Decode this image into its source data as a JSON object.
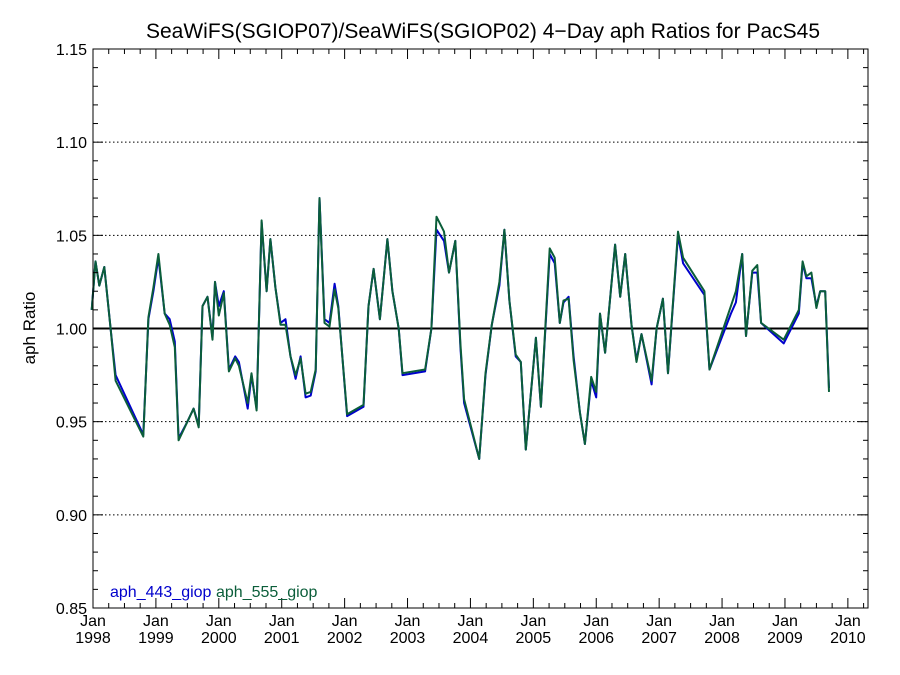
{
  "chart_data": {
    "type": "line",
    "title": "SeaWiFS(SGIOP07)/SeaWiFS(SGIOP02) 4−Day aph Ratios for PacS45",
    "xlabel": "",
    "ylabel": "aph Ratio",
    "xlim": [
      1998.0,
      2010.32
    ],
    "ylim": [
      0.85,
      1.15
    ],
    "yticks": [
      0.85,
      0.9,
      0.95,
      1.0,
      1.05,
      1.1,
      1.15
    ],
    "ytick_labels": [
      "0.85",
      "0.90",
      "0.95",
      "1.00",
      "1.05",
      "1.10",
      "1.15"
    ],
    "xticks": [
      {
        "month": "Jan",
        "year": "1998",
        "x": 1998
      },
      {
        "month": "Jan",
        "year": "1999",
        "x": 1999
      },
      {
        "month": "Jan",
        "year": "2000",
        "x": 2000
      },
      {
        "month": "Jan",
        "year": "2001",
        "x": 2001
      },
      {
        "month": "Jan",
        "year": "2002",
        "x": 2002
      },
      {
        "month": "Jan",
        "year": "2003",
        "x": 2003
      },
      {
        "month": "Jan",
        "year": "2004",
        "x": 2004
      },
      {
        "month": "Jan",
        "year": "2005",
        "x": 2005
      },
      {
        "month": "Jan",
        "year": "2006",
        "x": 2006
      },
      {
        "month": "Jan",
        "year": "2007",
        "x": 2007
      },
      {
        "month": "Jan",
        "year": "2008",
        "x": 2008
      },
      {
        "month": "Jan",
        "year": "2009",
        "x": 2009
      },
      {
        "month": "Jan",
        "year": "2010",
        "x": 2010
      }
    ],
    "grid": "horizontal-dotted",
    "reference_line": 1.0,
    "legend_position": "bottom-left",
    "series": [
      {
        "name": "aph_443_giop",
        "color": "#0000cc",
        "points": [
          [
            1997.98,
            1.01
          ],
          [
            1998.04,
            1.036
          ],
          [
            1998.1,
            1.023
          ],
          [
            1998.18,
            1.033
          ],
          [
            1998.28,
            1.0
          ],
          [
            1998.36,
            0.975
          ],
          [
            1998.8,
            0.943
          ],
          [
            1998.88,
            1.005
          ],
          [
            1998.96,
            1.02
          ],
          [
            1999.04,
            1.038
          ],
          [
            1999.14,
            1.008
          ],
          [
            1999.22,
            1.005
          ],
          [
            1999.3,
            0.993
          ],
          [
            1999.36,
            0.941
          ],
          [
            1999.5,
            0.95
          ],
          [
            1999.6,
            0.957
          ],
          [
            1999.68,
            0.948
          ],
          [
            1999.74,
            1.012
          ],
          [
            1999.82,
            1.017
          ],
          [
            1999.9,
            0.995
          ],
          [
            1999.94,
            1.025
          ],
          [
            2000.0,
            1.012
          ],
          [
            2000.08,
            1.02
          ],
          [
            2000.16,
            0.978
          ],
          [
            2000.26,
            0.985
          ],
          [
            2000.32,
            0.982
          ],
          [
            2000.46,
            0.957
          ],
          [
            2000.52,
            0.975
          ],
          [
            2000.6,
            0.957
          ],
          [
            2000.68,
            1.057
          ],
          [
            2000.76,
            1.02
          ],
          [
            2000.82,
            1.048
          ],
          [
            2000.9,
            1.022
          ],
          [
            2000.98,
            1.003
          ],
          [
            2001.06,
            1.005
          ],
          [
            2001.14,
            0.985
          ],
          [
            2001.22,
            0.973
          ],
          [
            2001.3,
            0.985
          ],
          [
            2001.38,
            0.963
          ],
          [
            2001.46,
            0.964
          ],
          [
            2001.54,
            0.977
          ],
          [
            2001.6,
            1.07
          ],
          [
            2001.68,
            1.005
          ],
          [
            2001.76,
            1.003
          ],
          [
            2001.84,
            1.024
          ],
          [
            2001.9,
            1.012
          ],
          [
            2002.04,
            0.953
          ],
          [
            2002.3,
            0.958
          ],
          [
            2002.38,
            1.012
          ],
          [
            2002.46,
            1.032
          ],
          [
            2002.56,
            1.005
          ],
          [
            2002.68,
            1.048
          ],
          [
            2002.76,
            1.02
          ],
          [
            2002.86,
            1.0
          ],
          [
            2002.92,
            0.975
          ],
          [
            2003.28,
            0.977
          ],
          [
            2003.38,
            1.0
          ],
          [
            2003.46,
            1.053
          ],
          [
            2003.58,
            1.047
          ],
          [
            2003.66,
            1.03
          ],
          [
            2003.76,
            1.047
          ],
          [
            2003.84,
            0.99
          ],
          [
            2003.9,
            0.96
          ],
          [
            2004.14,
            0.93
          ],
          [
            2004.24,
            0.975
          ],
          [
            2004.34,
            1.002
          ],
          [
            2004.46,
            1.023
          ],
          [
            2004.54,
            1.053
          ],
          [
            2004.62,
            1.015
          ],
          [
            2004.72,
            0.985
          ],
          [
            2004.8,
            0.982
          ],
          [
            2004.88,
            0.935
          ],
          [
            2005.04,
            0.995
          ],
          [
            2005.12,
            0.958
          ],
          [
            2005.26,
            1.04
          ],
          [
            2005.34,
            1.035
          ],
          [
            2005.42,
            1.003
          ],
          [
            2005.48,
            1.014
          ],
          [
            2005.56,
            1.017
          ],
          [
            2005.64,
            0.985
          ],
          [
            2005.74,
            0.955
          ],
          [
            2005.82,
            0.938
          ],
          [
            2005.92,
            0.972
          ],
          [
            2006.0,
            0.963
          ],
          [
            2006.06,
            1.008
          ],
          [
            2006.14,
            0.987
          ],
          [
            2006.3,
            1.045
          ],
          [
            2006.38,
            1.017
          ],
          [
            2006.46,
            1.04
          ],
          [
            2006.56,
            1.002
          ],
          [
            2006.64,
            0.983
          ],
          [
            2006.72,
            0.997
          ],
          [
            2006.88,
            0.97
          ],
          [
            2006.96,
            1.0
          ],
          [
            2007.06,
            1.016
          ],
          [
            2007.14,
            0.976
          ],
          [
            2007.3,
            1.05
          ],
          [
            2007.38,
            1.035
          ],
          [
            2007.72,
            1.018
          ],
          [
            2007.8,
            0.978
          ],
          [
            2008.14,
            1.008
          ],
          [
            2008.22,
            1.014
          ],
          [
            2008.32,
            1.04
          ],
          [
            2008.38,
            0.996
          ],
          [
            2008.48,
            1.03
          ],
          [
            2008.56,
            1.03
          ],
          [
            2008.62,
            1.003
          ],
          [
            2008.98,
            0.992
          ],
          [
            2009.22,
            1.008
          ],
          [
            2009.28,
            1.035
          ],
          [
            2009.34,
            1.027
          ],
          [
            2009.42,
            1.027
          ],
          [
            2009.5,
            1.012
          ],
          [
            2009.56,
            1.02
          ],
          [
            2009.64,
            1.02
          ],
          [
            2009.7,
            0.968
          ]
        ]
      },
      {
        "name": "aph_555_giop",
        "color": "#0b5e3a",
        "points": [
          [
            1997.98,
            1.01
          ],
          [
            1998.04,
            1.036
          ],
          [
            1998.1,
            1.023
          ],
          [
            1998.18,
            1.033
          ],
          [
            1998.28,
            1.0
          ],
          [
            1998.36,
            0.972
          ],
          [
            1998.8,
            0.942
          ],
          [
            1998.88,
            1.006
          ],
          [
            1998.96,
            1.022
          ],
          [
            1999.04,
            1.04
          ],
          [
            1999.14,
            1.008
          ],
          [
            1999.22,
            1.002
          ],
          [
            1999.3,
            0.99
          ],
          [
            1999.36,
            0.94
          ],
          [
            1999.5,
            0.95
          ],
          [
            1999.6,
            0.957
          ],
          [
            1999.68,
            0.947
          ],
          [
            1999.74,
            1.012
          ],
          [
            1999.82,
            1.017
          ],
          [
            1999.9,
            0.994
          ],
          [
            1999.94,
            1.025
          ],
          [
            2000.0,
            1.007
          ],
          [
            2000.08,
            1.019
          ],
          [
            2000.16,
            0.977
          ],
          [
            2000.26,
            0.984
          ],
          [
            2000.32,
            0.98
          ],
          [
            2000.46,
            0.96
          ],
          [
            2000.52,
            0.976
          ],
          [
            2000.6,
            0.956
          ],
          [
            2000.68,
            1.058
          ],
          [
            2000.76,
            1.02
          ],
          [
            2000.82,
            1.048
          ],
          [
            2000.9,
            1.022
          ],
          [
            2000.98,
            1.002
          ],
          [
            2001.06,
            1.002
          ],
          [
            2001.14,
            0.985
          ],
          [
            2001.22,
            0.975
          ],
          [
            2001.3,
            0.984
          ],
          [
            2001.38,
            0.965
          ],
          [
            2001.46,
            0.966
          ],
          [
            2001.54,
            0.978
          ],
          [
            2001.6,
            1.07
          ],
          [
            2001.68,
            1.003
          ],
          [
            2001.76,
            1.001
          ],
          [
            2001.84,
            1.021
          ],
          [
            2001.9,
            1.011
          ],
          [
            2002.04,
            0.954
          ],
          [
            2002.3,
            0.959
          ],
          [
            2002.38,
            1.012
          ],
          [
            2002.46,
            1.032
          ],
          [
            2002.56,
            1.005
          ],
          [
            2002.68,
            1.048
          ],
          [
            2002.76,
            1.02
          ],
          [
            2002.86,
            1.0
          ],
          [
            2002.92,
            0.976
          ],
          [
            2003.28,
            0.978
          ],
          [
            2003.38,
            1.0
          ],
          [
            2003.46,
            1.06
          ],
          [
            2003.58,
            1.052
          ],
          [
            2003.66,
            1.03
          ],
          [
            2003.76,
            1.047
          ],
          [
            2003.84,
            0.992
          ],
          [
            2003.9,
            0.962
          ],
          [
            2004.14,
            0.93
          ],
          [
            2004.24,
            0.976
          ],
          [
            2004.34,
            1.002
          ],
          [
            2004.46,
            1.025
          ],
          [
            2004.54,
            1.053
          ],
          [
            2004.62,
            1.015
          ],
          [
            2004.72,
            0.986
          ],
          [
            2004.8,
            0.982
          ],
          [
            2004.88,
            0.935
          ],
          [
            2005.04,
            0.995
          ],
          [
            2005.12,
            0.958
          ],
          [
            2005.26,
            1.043
          ],
          [
            2005.34,
            1.038
          ],
          [
            2005.42,
            1.003
          ],
          [
            2005.48,
            1.015
          ],
          [
            2005.56,
            1.016
          ],
          [
            2005.64,
            0.983
          ],
          [
            2005.74,
            0.955
          ],
          [
            2005.82,
            0.938
          ],
          [
            2005.92,
            0.974
          ],
          [
            2006.0,
            0.966
          ],
          [
            2006.06,
            1.008
          ],
          [
            2006.14,
            0.987
          ],
          [
            2006.3,
            1.045
          ],
          [
            2006.38,
            1.017
          ],
          [
            2006.46,
            1.04
          ],
          [
            2006.56,
            1.002
          ],
          [
            2006.64,
            0.982
          ],
          [
            2006.72,
            0.997
          ],
          [
            2006.88,
            0.972
          ],
          [
            2006.96,
            1.0
          ],
          [
            2007.06,
            1.016
          ],
          [
            2007.14,
            0.976
          ],
          [
            2007.3,
            1.052
          ],
          [
            2007.38,
            1.038
          ],
          [
            2007.72,
            1.02
          ],
          [
            2007.8,
            0.978
          ],
          [
            2008.14,
            1.012
          ],
          [
            2008.22,
            1.02
          ],
          [
            2008.32,
            1.04
          ],
          [
            2008.38,
            0.996
          ],
          [
            2008.48,
            1.031
          ],
          [
            2008.56,
            1.034
          ],
          [
            2008.62,
            1.003
          ],
          [
            2008.98,
            0.994
          ],
          [
            2009.22,
            1.01
          ],
          [
            2009.28,
            1.036
          ],
          [
            2009.34,
            1.028
          ],
          [
            2009.42,
            1.03
          ],
          [
            2009.5,
            1.011
          ],
          [
            2009.56,
            1.02
          ],
          [
            2009.64,
            1.02
          ],
          [
            2009.7,
            0.966
          ]
        ]
      }
    ]
  }
}
